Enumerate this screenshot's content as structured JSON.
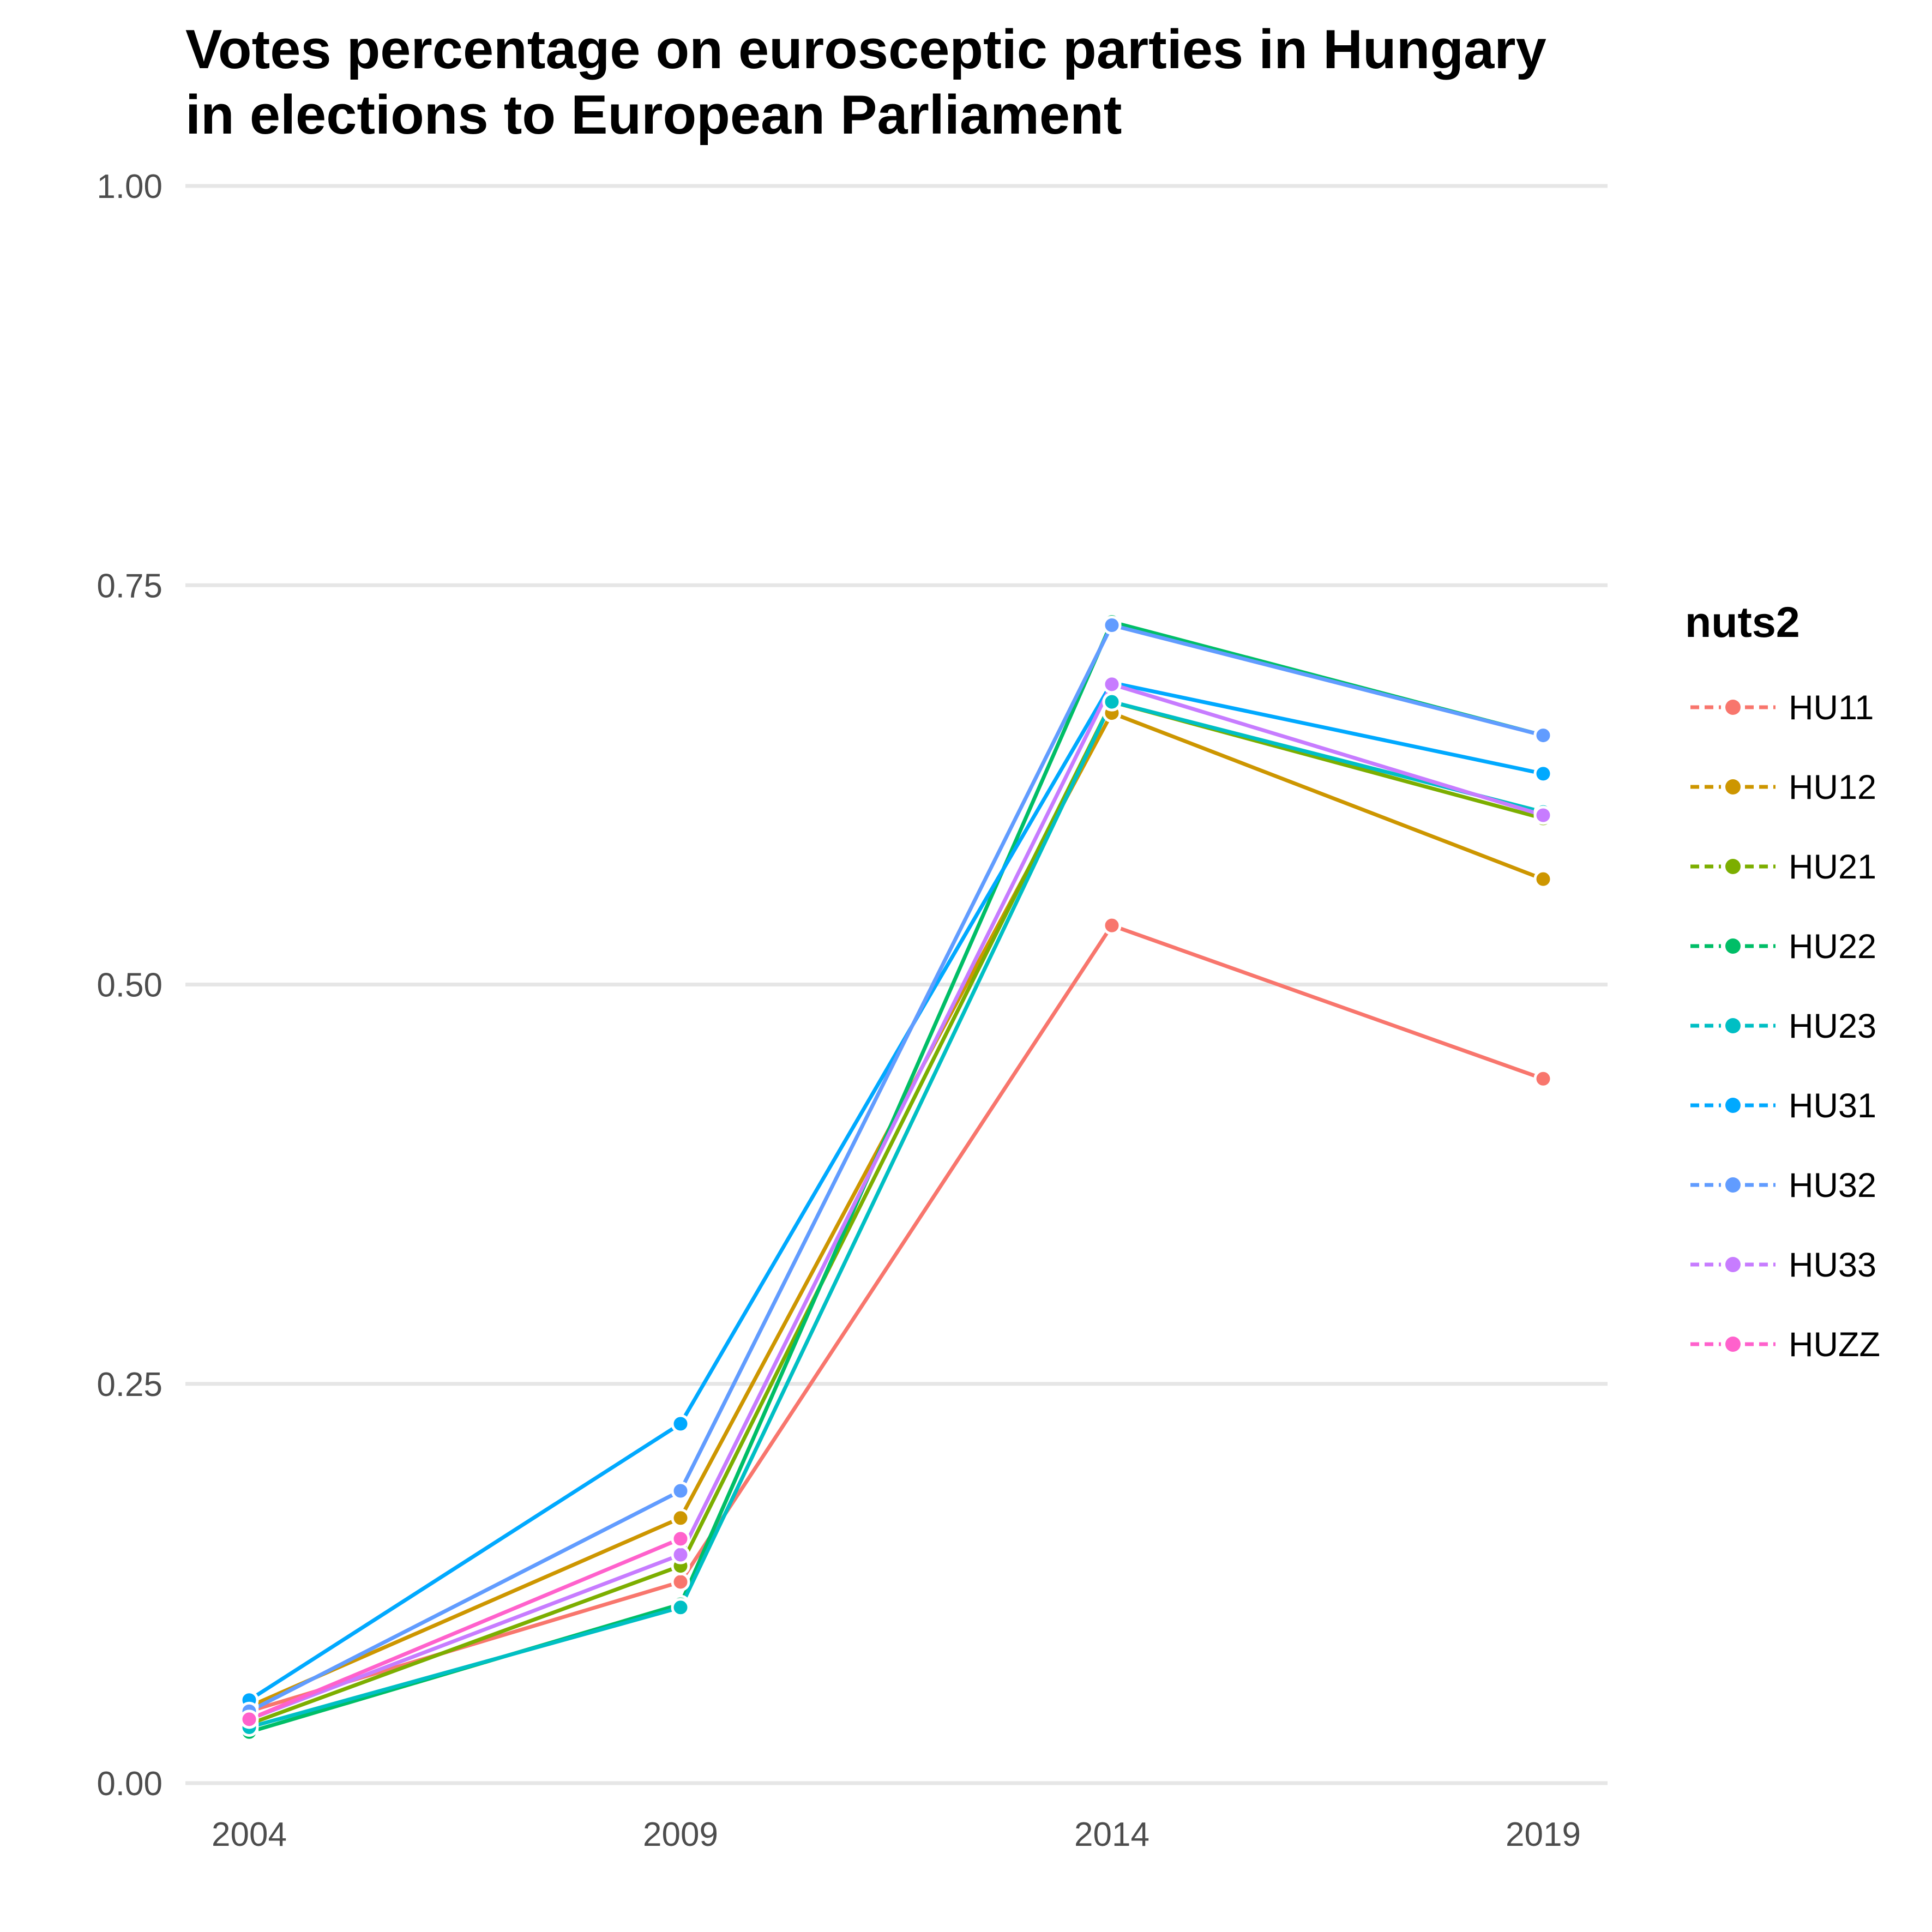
{
  "chart_data": {
    "type": "line",
    "title_lines": [
      "Votes percentage on eurosceptic parties in Hungary",
      "in elections to European Parliament"
    ],
    "xlabel": "",
    "ylabel": "",
    "x": [
      "2004",
      "2009",
      "2014",
      "2019"
    ],
    "ylim": [
      0,
      1
    ],
    "y_ticks": [
      "0.00",
      "0.25",
      "0.50",
      "0.75",
      "1.00"
    ],
    "y_tick_values": [
      0,
      0.25,
      0.5,
      0.75,
      1.0
    ],
    "grid": true,
    "legend_title": "nuts2",
    "legend_position": "right",
    "series": [
      {
        "name": "HU11",
        "color": "#F8766D",
        "values": [
          0.045,
          0.126,
          0.537,
          0.441
        ]
      },
      {
        "name": "HU12",
        "color": "#CD9600",
        "values": [
          0.048,
          0.166,
          0.67,
          0.566
        ]
      },
      {
        "name": "HU21",
        "color": "#7CAE00",
        "values": [
          0.037,
          0.136,
          0.677,
          0.604
        ]
      },
      {
        "name": "HU22",
        "color": "#00BE67",
        "values": [
          0.032,
          0.112,
          0.727,
          0.656
        ]
      },
      {
        "name": "HU23",
        "color": "#00BFC4",
        "values": [
          0.035,
          0.11,
          0.677,
          0.608
        ]
      },
      {
        "name": "HU31",
        "color": "#00A9FF",
        "values": [
          0.052,
          0.225,
          0.689,
          0.632
        ]
      },
      {
        "name": "HU32",
        "color": "#619CFF",
        "values": [
          0.045,
          0.183,
          0.725,
          0.656
        ]
      },
      {
        "name": "HU33",
        "color": "#C77CFF",
        "values": [
          0.04,
          0.143,
          0.688,
          0.606
        ]
      },
      {
        "name": "HUZZ",
        "color": "#FF61CC",
        "values": [
          0.04,
          0.153,
          null,
          null
        ]
      }
    ]
  }
}
